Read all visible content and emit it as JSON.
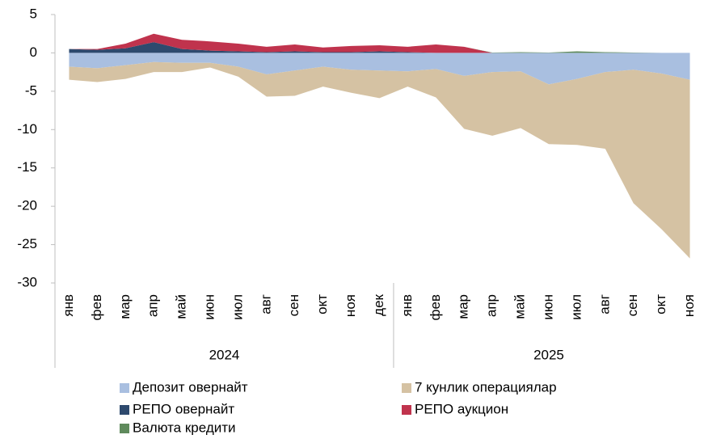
{
  "chart_data": {
    "type": "area",
    "stacked": true,
    "groups": [
      {
        "label": "2024",
        "categories": [
          "янв",
          "фев",
          "мар",
          "апр",
          "май",
          "июн",
          "июл",
          "авг",
          "сен",
          "окт",
          "ноя",
          "дек"
        ]
      },
      {
        "label": "2025",
        "categories": [
          "янв",
          "фев",
          "мар",
          "апр",
          "май",
          "июн",
          "июл",
          "авг",
          "сен",
          "окт",
          "ноя"
        ]
      }
    ],
    "series": [
      {
        "name": "Депозит овернайт",
        "color": "#a9bfe0",
        "values": [
          -1.8,
          -2.0,
          -1.6,
          -1.2,
          -1.3,
          -1.3,
          -1.8,
          -2.8,
          -2.3,
          -1.8,
          -2.2,
          -2.3,
          -2.4,
          -2.1,
          -3.0,
          -2.5,
          -2.4,
          -4.1,
          -3.4,
          -2.5,
          -2.2,
          -2.7,
          -3.5
        ]
      },
      {
        "name": "7 кунлик операциялар",
        "color": "#d5c2a3",
        "values": [
          -1.7,
          -1.8,
          -1.8,
          -1.3,
          -1.2,
          -0.6,
          -1.3,
          -2.9,
          -3.3,
          -2.6,
          -3.0,
          -3.6,
          -2.0,
          -3.7,
          -6.9,
          -8.3,
          -7.4,
          -7.8,
          -8.6,
          -10.0,
          -17.4,
          -20.3,
          -23.3
        ]
      },
      {
        "name": "РЕПО овернайт",
        "color": "#2e4a6e",
        "values": [
          0.5,
          0.4,
          0.6,
          1.4,
          0.5,
          0.3,
          0.2,
          0.1,
          0.2,
          0.1,
          0.1,
          0.2,
          0.1,
          0,
          0,
          0,
          0,
          0,
          0,
          0,
          0,
          0,
          0
        ]
      },
      {
        "name": "РЕПО аукцион",
        "color": "#c0334d",
        "values": [
          0,
          0.1,
          0.6,
          1.1,
          1.2,
          1.2,
          1.0,
          0.7,
          0.9,
          0.6,
          0.8,
          0.8,
          0.7,
          1.1,
          0.8,
          0,
          0,
          0,
          0,
          0,
          0,
          0,
          0
        ]
      },
      {
        "name": "Валюта кредити",
        "color": "#5f8a5c",
        "values": [
          0,
          0,
          0,
          0,
          0,
          0,
          0,
          0,
          0,
          0,
          0,
          0,
          0,
          0,
          0,
          0.05,
          0.1,
          0.05,
          0.2,
          0.1,
          0.05,
          0,
          0
        ]
      }
    ],
    "ylim": [
      -30,
      5
    ],
    "yticks": [
      -30,
      -25,
      -20,
      -15,
      -10,
      -5,
      0,
      5
    ]
  }
}
